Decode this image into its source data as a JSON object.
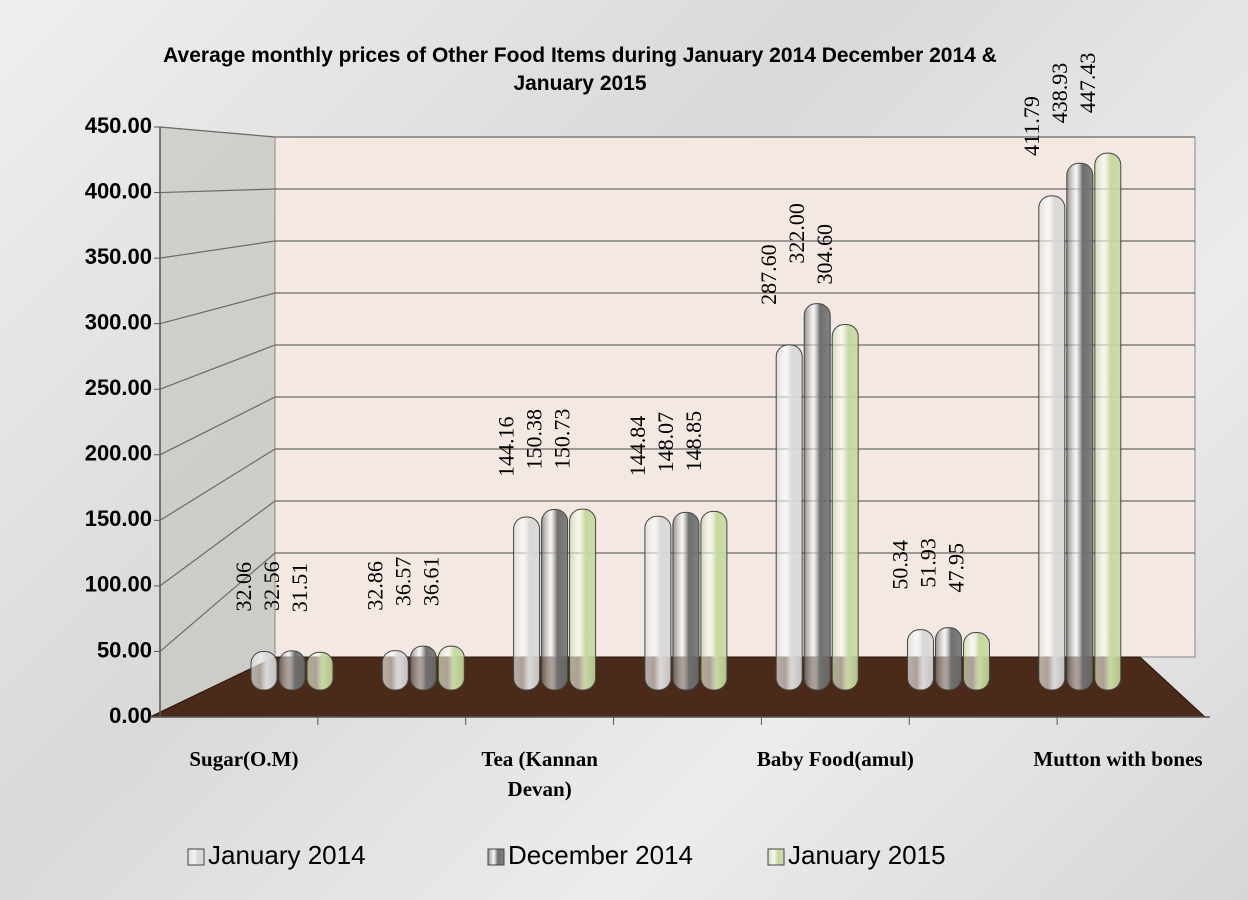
{
  "chart_data": {
    "type": "bar",
    "title": "Average monthly prices of Other Food Items during  January  2014 December 2014 & January 2015",
    "categories": [
      "Sugar(O.M)",
      null,
      "Tea (Kannan Devan)",
      null,
      "Baby Food(amul)",
      null,
      "Mutton with  bones"
    ],
    "series": [
      {
        "name": "January 2014",
        "color": "#d9d9d9",
        "values": [
          32.06,
          32.86,
          144.16,
          144.84,
          287.6,
          50.34,
          411.79
        ],
        "value_labels": [
          "32.06",
          "32.86",
          "144.16",
          "144.84",
          "287.60",
          "50.34",
          "411.79"
        ]
      },
      {
        "name": "December 2014",
        "color": "#6f6f6f",
        "values": [
          32.56,
          36.57,
          150.38,
          148.07,
          322,
          51.93,
          438.93
        ],
        "value_labels": [
          "32.56",
          "36.57",
          "150.38",
          "148.07",
          "322.00",
          "51.93",
          "438.93"
        ]
      },
      {
        "name": "January 2015",
        "color": "#c6d9a0",
        "values": [
          31.51,
          36.61,
          150.73,
          148.85,
          304.6,
          47.95,
          447.43
        ],
        "value_labels": [
          "31.51",
          "36.61",
          "150.73",
          "148.85",
          "304.60",
          "47.95",
          "447.43"
        ]
      }
    ],
    "ylim": [
      0,
      450
    ],
    "yticks": [
      {
        "value": 0,
        "label": "0.00"
      },
      {
        "value": 50,
        "label": "50.00"
      },
      {
        "value": 100,
        "label": "100.00"
      },
      {
        "value": 150,
        "label": "150.00"
      },
      {
        "value": 200,
        "label": "200.00"
      },
      {
        "value": 250,
        "label": "250.00"
      },
      {
        "value": 300,
        "label": "300.00"
      },
      {
        "value": 350,
        "label": "350.00"
      },
      {
        "value": 400,
        "label": "400.00"
      },
      {
        "value": 450,
        "label": "450.00"
      }
    ],
    "grid": true
  }
}
